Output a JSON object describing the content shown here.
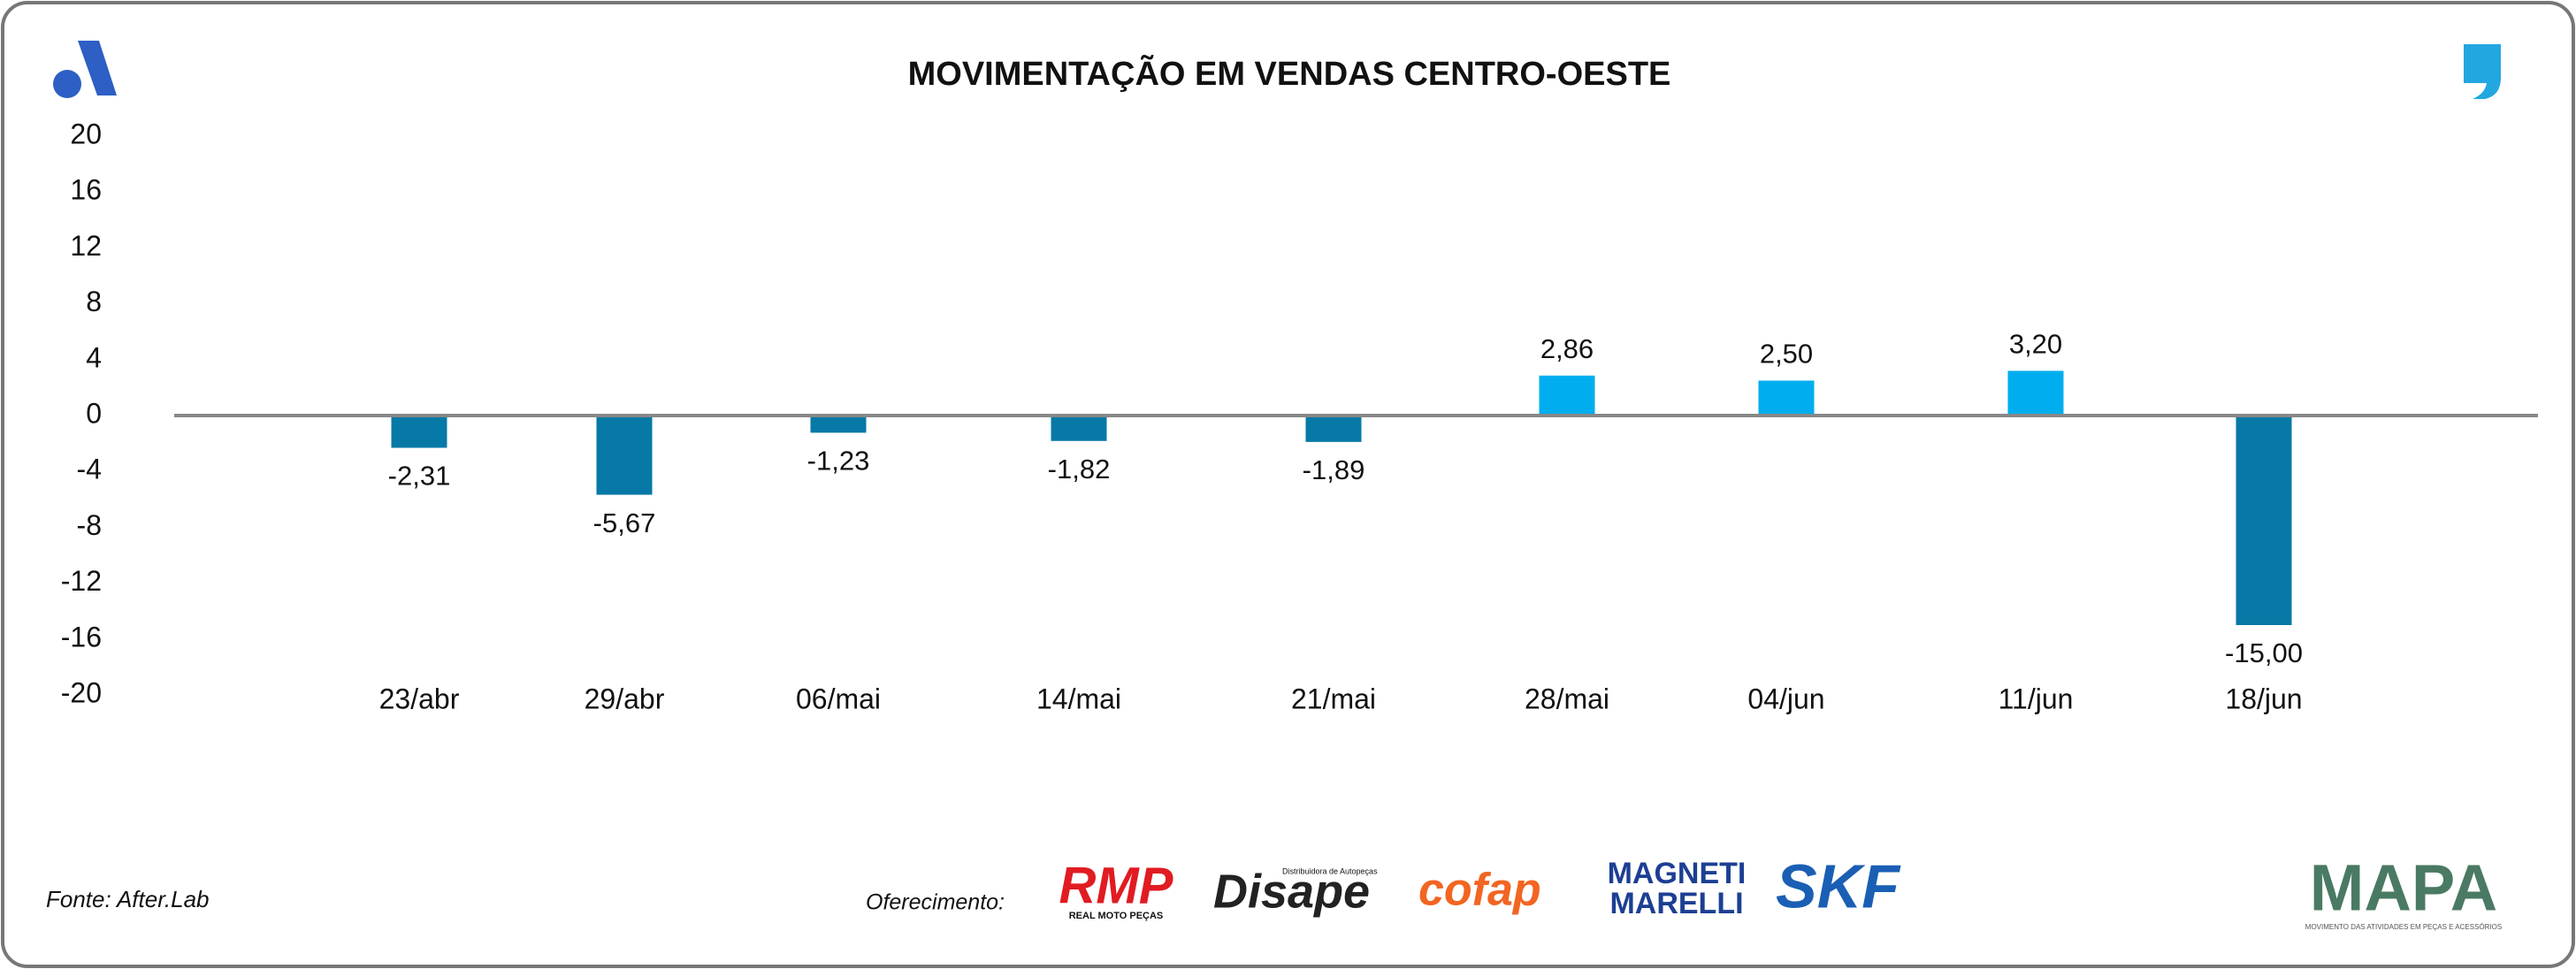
{
  "chart_data": {
    "type": "bar",
    "title": "MOVIMENTAÇÃO EM VENDAS CENTRO-OESTE",
    "categories": [
      "23/abr",
      "29/abr",
      "06/mai",
      "14/mai",
      "21/mai",
      "28/mai",
      "04/jun",
      "11/jun",
      "18/jun"
    ],
    "values": [
      -2.31,
      -5.67,
      -1.23,
      -1.82,
      -1.89,
      2.86,
      2.5,
      3.2,
      -15.0
    ],
    "value_labels": [
      "-2,31",
      "-5,67",
      "-1,23",
      "-1,82",
      "-1,89",
      "2,86",
      "2,50",
      "3,20",
      "-15,00"
    ],
    "color_negative": "#0679a6",
    "color_positive": "#00aeef",
    "ylim": [
      -20,
      20
    ],
    "yticks": [
      20,
      16,
      12,
      8,
      4,
      0,
      -4,
      -8,
      -12,
      -16,
      -20
    ],
    "grid": false
  },
  "footer": {
    "source": "Fonte: After.Lab",
    "sponsor_label": "Oferecimento:",
    "sponsors": [
      "RMP",
      "REAL MOTO PEÇAS",
      "Disape",
      "Distribuidora de Autopeças",
      "cofap",
      "MAGNETI",
      "MARELLI",
      "SKF"
    ],
    "brand": "MAPA",
    "brand_tagline": "MOVIMENTO DAS ATIVIDADES EM PEÇAS E ACESSÓRIOS"
  }
}
